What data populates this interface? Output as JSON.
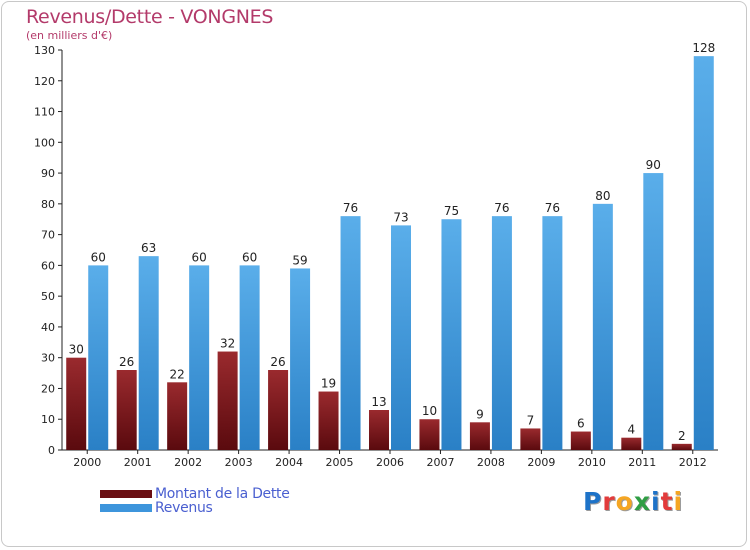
{
  "title": "Revenus/Dette - VONGNES",
  "subtitle": "(en milliers d'€)",
  "brand": {
    "text": "Proxiti",
    "letters": [
      {
        "ch": "P",
        "color": "#1e73c8"
      },
      {
        "ch": "r",
        "color": "#e23b3b"
      },
      {
        "ch": "o",
        "color": "#f5a623"
      },
      {
        "ch": "x",
        "color": "#2f9e44"
      },
      {
        "ch": "i",
        "color": "#1e73c8"
      },
      {
        "ch": "t",
        "color": "#e23b3b"
      },
      {
        "ch": "i",
        "color": "#f5a623"
      }
    ]
  },
  "chart_data": {
    "type": "bar",
    "title": "Revenus/Dette - VONGNES",
    "ylabel": "(en milliers d'€)",
    "categories": [
      "2000",
      "2001",
      "2002",
      "2003",
      "2004",
      "2005",
      "2006",
      "2007",
      "2008",
      "2009",
      "2010",
      "2011",
      "2012"
    ],
    "series": [
      {
        "name": "Montant de la Dette",
        "color": "#7a1418",
        "values": [
          30,
          26,
          22,
          32,
          26,
          19,
          13,
          10,
          9,
          7,
          6,
          4,
          2
        ]
      },
      {
        "name": "Revenus",
        "color": "#3d95dc",
        "values": [
          60,
          63,
          60,
          60,
          59,
          76,
          73,
          75,
          76,
          76,
          80,
          90,
          128
        ]
      }
    ],
    "ylim": [
      0,
      130
    ],
    "yticks": [
      0,
      10,
      20,
      30,
      40,
      50,
      60,
      70,
      80,
      90,
      100,
      110,
      120,
      130
    ],
    "grid": false,
    "legend": "bottom-left"
  }
}
